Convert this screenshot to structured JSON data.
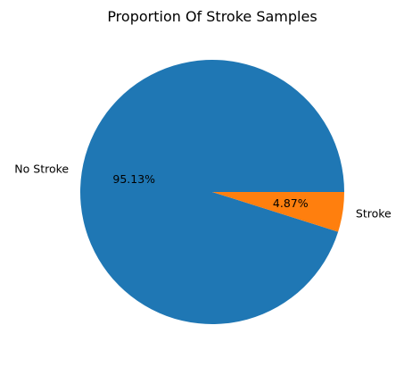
{
  "chart_data": {
    "type": "pie",
    "title": "Proportion Of Stroke Samples",
    "slices": [
      {
        "label": "No Stroke",
        "value": 95.13,
        "pct_label": "95.13%",
        "color": "#1f77b4"
      },
      {
        "label": "Stroke",
        "value": 4.87,
        "pct_label": "4.87%",
        "color": "#ff7f0e"
      }
    ]
  }
}
